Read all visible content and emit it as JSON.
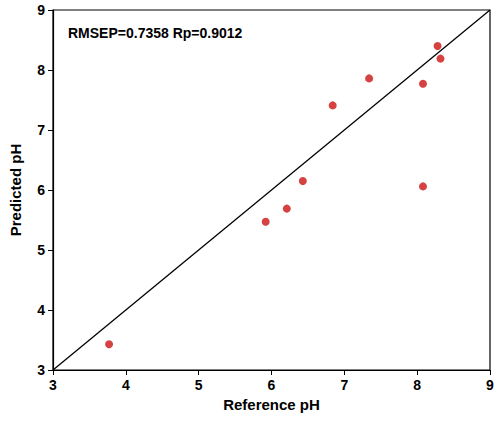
{
  "chart_data": {
    "type": "scatter",
    "annotation": "RMSEP=0.7358 Rp=0.9012",
    "x_label": "Reference pH",
    "y_label": "Predicted pH",
    "series": [
      {
        "type": "scatter",
        "color": "#cc1111",
        "marker": "circle",
        "x": [
          3.77,
          5.92,
          6.21,
          6.43,
          6.84,
          7.34,
          8.08,
          8.08,
          8.28,
          8.32
        ],
        "values": [
          3.43,
          5.47,
          5.69,
          6.15,
          7.41,
          7.86,
          7.77,
          6.06,
          8.4,
          8.19
        ]
      },
      {
        "type": "line",
        "color": "#000000",
        "line_style": "solid",
        "x": [
          3,
          9
        ],
        "values": [
          3,
          9
        ]
      }
    ],
    "xlim": [
      3,
      9
    ],
    "xticks": [
      3,
      4,
      5,
      6,
      7,
      8,
      9
    ],
    "ylim": [
      3,
      9
    ],
    "yticks": [
      3,
      4,
      5,
      6,
      7,
      8,
      9
    ],
    "grid": false
  }
}
